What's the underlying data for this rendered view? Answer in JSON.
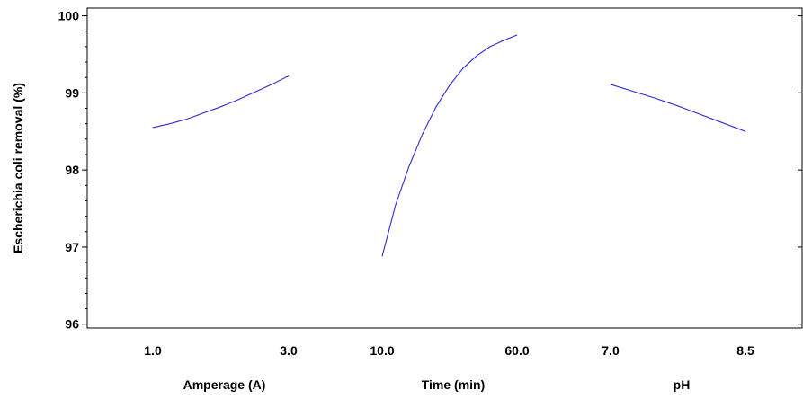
{
  "chart_data": {
    "type": "line",
    "ylabel": "Escherichia coli removal (%)",
    "ylim": [
      95.95,
      100.1
    ],
    "yticks": [
      96,
      97,
      98,
      99,
      100
    ],
    "line_color": "#2b2bd4",
    "panels": [
      {
        "xlabel": "Amperage (A)",
        "xlim": [
          1.0,
          3.0
        ],
        "tick_labels": [
          "1.0",
          "3.0"
        ],
        "series": [
          {
            "x": [
              1.0,
              1.25,
              1.5,
              1.75,
              2.0,
              2.25,
              2.5,
              2.75,
              3.0
            ],
            "y": [
              98.55,
              98.6,
              98.66,
              98.74,
              98.82,
              98.91,
              99.01,
              99.11,
              99.22
            ]
          }
        ]
      },
      {
        "xlabel": "Time (min)",
        "xlim": [
          10.0,
          60.0
        ],
        "tick_labels": [
          "10.0",
          "60.0"
        ],
        "series": [
          {
            "x": [
              10,
              15,
              20,
              25,
              30,
              35,
              40,
              45,
              50,
              55,
              60
            ],
            "y": [
              96.88,
              97.55,
              98.05,
              98.47,
              98.82,
              99.1,
              99.32,
              99.48,
              99.6,
              99.68,
              99.75
            ]
          }
        ]
      },
      {
        "xlabel": "pH",
        "xlim": [
          7.0,
          8.5
        ],
        "tick_labels": [
          "7.0",
          "8.5"
        ],
        "series": [
          {
            "x": [
              7.0,
              7.25,
              7.5,
              7.75,
              8.0,
              8.25,
              8.5
            ],
            "y": [
              99.11,
              99.02,
              98.93,
              98.83,
              98.72,
              98.61,
              98.5
            ]
          }
        ]
      }
    ]
  }
}
